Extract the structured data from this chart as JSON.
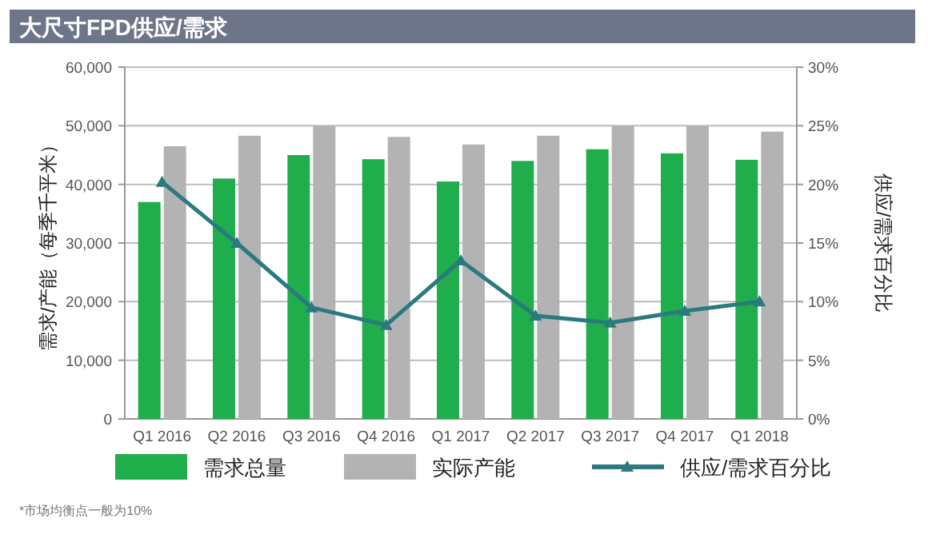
{
  "chart_data": {
    "type": "bar",
    "title": "大尺寸FPD供应/需求",
    "ylabel": "需求/产能（每季千平米）",
    "y2label": "供应/需求百分比",
    "categories": [
      "Q1 2016",
      "Q2 2016",
      "Q3 2016",
      "Q4 2016",
      "Q1 2017",
      "Q2 2017",
      "Q3 2017",
      "Q4 2017",
      "Q1 2018"
    ],
    "series": [
      {
        "name": "需求总量",
        "color": "#1fae4b",
        "values": [
          37000,
          41000,
          45000,
          44300,
          40500,
          44000,
          46000,
          45300,
          44200
        ]
      },
      {
        "name": "实际产能",
        "color": "#b3b3b3",
        "values": [
          46500,
          48300,
          50000,
          48100,
          46800,
          48300,
          50000,
          50000,
          49000
        ]
      },
      {
        "name": "供应/需求百分比",
        "color": "#2a7a80",
        "type": "line",
        "axis": "y2",
        "marker": "triangle",
        "values": [
          20.2,
          15,
          9.5,
          8,
          13.5,
          8.8,
          8.2,
          9.2,
          10
        ]
      }
    ],
    "ylim": [
      0,
      60000
    ],
    "yticks": [
      0,
      {
        "value": 10000,
        "label": "10,000"
      },
      {
        "value": 20000,
        "label": "20,000"
      },
      {
        "value": 30000,
        "label": "30,000"
      },
      {
        "value": 40000,
        "label": "40,000"
      },
      {
        "value": 50000,
        "label": "50,000"
      },
      {
        "value": 60000,
        "label": "60,000"
      }
    ],
    "y2lim": [
      0,
      30
    ],
    "y2ticks": [
      {
        "value": 0,
        "label": "0%"
      },
      {
        "value": 5,
        "label": "5%"
      },
      {
        "value": 10,
        "label": "10%"
      },
      {
        "value": 15,
        "label": "15%"
      },
      {
        "value": 20,
        "label": "20%"
      },
      {
        "value": 25,
        "label": "25%"
      },
      {
        "value": 30,
        "label": "30%"
      }
    ],
    "grid": "y",
    "legend": "bottom",
    "annotations": [
      "*市场均衡点一般为10%"
    ]
  }
}
